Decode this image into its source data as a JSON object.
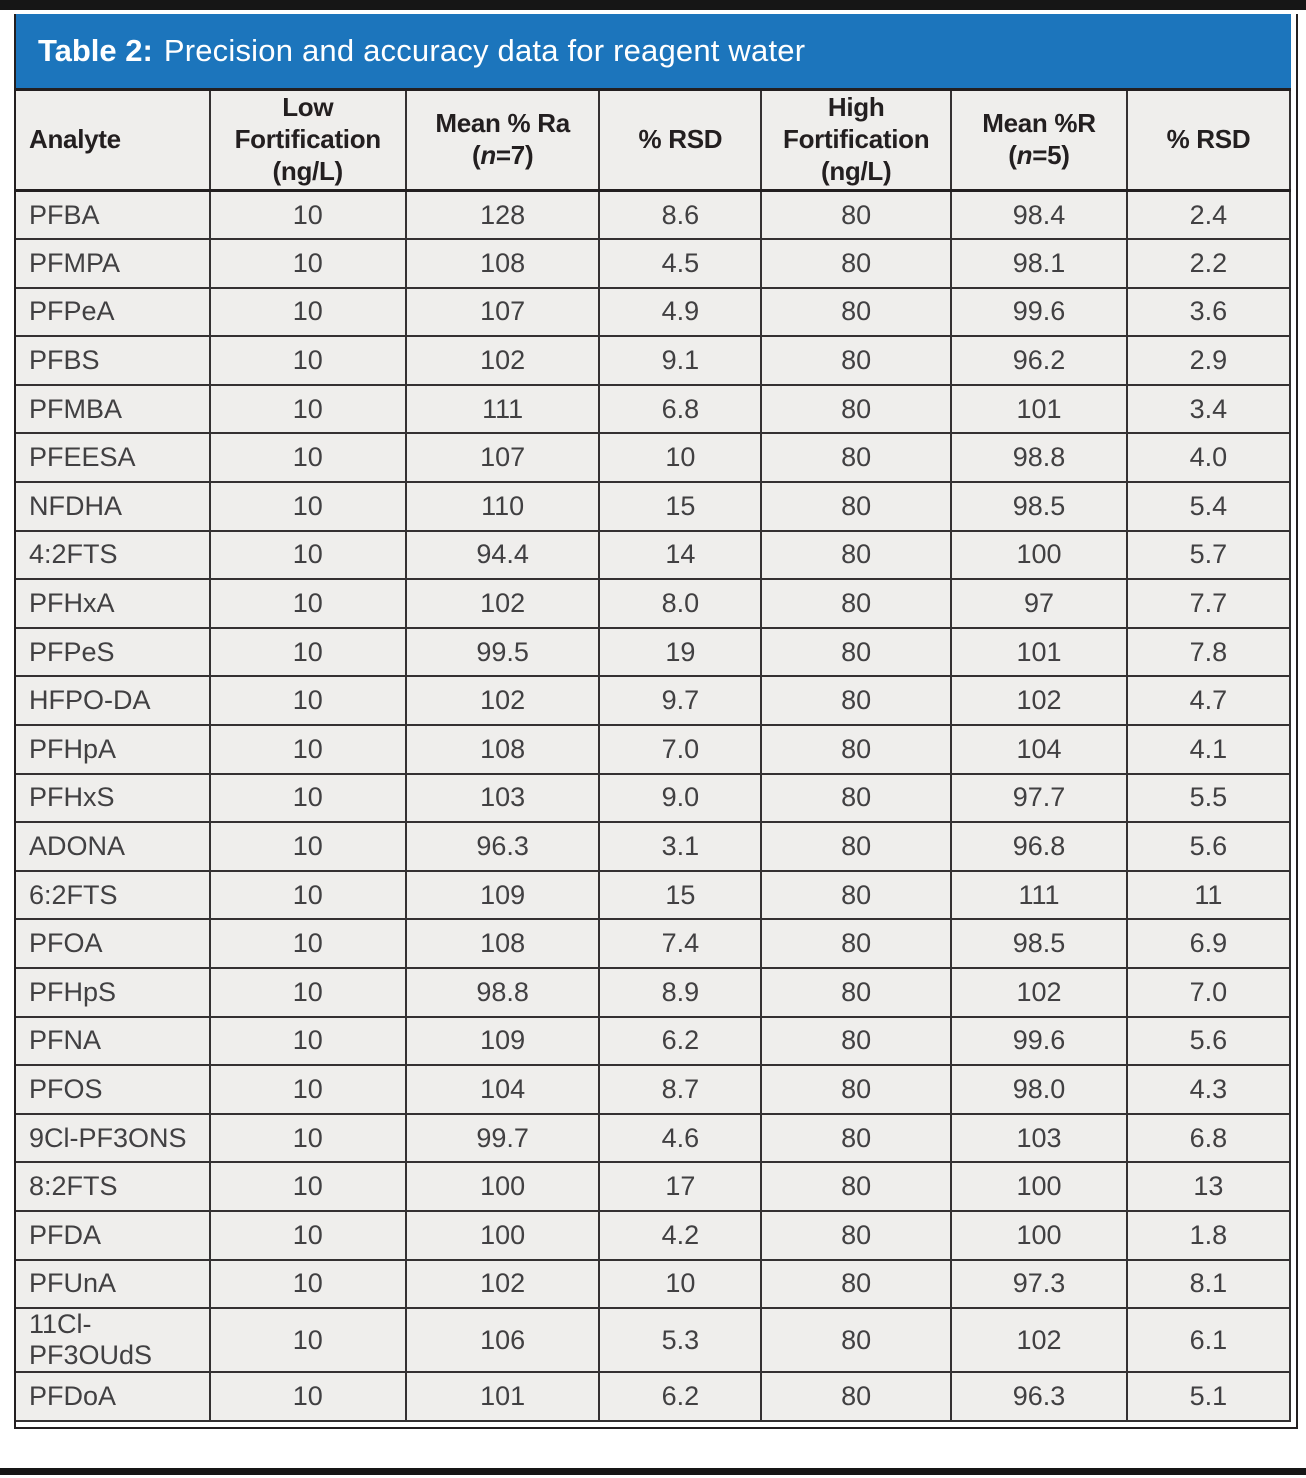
{
  "title": {
    "prefix": "Table 2:",
    "text": "Precision and accuracy data for reagent water"
  },
  "table": {
    "columns": [
      {
        "id": "analyte",
        "lines": [
          "Analyte"
        ]
      },
      {
        "id": "low-fortification",
        "lines": [
          "Low",
          "Fortification",
          "(ng/L)"
        ]
      },
      {
        "id": "mean-pct-ra-n7",
        "lines": [
          "Mean % Ra",
          "(n=7)"
        ]
      },
      {
        "id": "pct-rsd-low",
        "lines": [
          "% RSD"
        ]
      },
      {
        "id": "high-fortification",
        "lines": [
          "High",
          "Fortification",
          "(ng/L)"
        ]
      },
      {
        "id": "mean-pct-r-n5",
        "lines": [
          "Mean %R",
          "(n=5)"
        ]
      },
      {
        "id": "pct-rsd-high",
        "lines": [
          "% RSD"
        ]
      }
    ],
    "rows": [
      [
        "PFBA",
        "10",
        "128",
        "8.6",
        "80",
        "98.4",
        "2.4"
      ],
      [
        "PFMPA",
        "10",
        "108",
        "4.5",
        "80",
        "98.1",
        "2.2"
      ],
      [
        "PFPeA",
        "10",
        "107",
        "4.9",
        "80",
        "99.6",
        "3.6"
      ],
      [
        "PFBS",
        "10",
        "102",
        "9.1",
        "80",
        "96.2",
        "2.9"
      ],
      [
        "PFMBA",
        "10",
        "111",
        "6.8",
        "80",
        "101",
        "3.4"
      ],
      [
        "PFEESA",
        "10",
        "107",
        "10",
        "80",
        "98.8",
        "4.0"
      ],
      [
        "NFDHA",
        "10",
        "110",
        "15",
        "80",
        "98.5",
        "5.4"
      ],
      [
        "4:2FTS",
        "10",
        "94.4",
        "14",
        "80",
        "100",
        "5.7"
      ],
      [
        "PFHxA",
        "10",
        "102",
        "8.0",
        "80",
        "97",
        "7.7"
      ],
      [
        "PFPeS",
        "10",
        "99.5",
        "19",
        "80",
        "101",
        "7.8"
      ],
      [
        "HFPO-DA",
        "10",
        "102",
        "9.7",
        "80",
        "102",
        "4.7"
      ],
      [
        "PFHpA",
        "10",
        "108",
        "7.0",
        "80",
        "104",
        "4.1"
      ],
      [
        "PFHxS",
        "10",
        "103",
        "9.0",
        "80",
        "97.7",
        "5.5"
      ],
      [
        "ADONA",
        "10",
        "96.3",
        "3.1",
        "80",
        "96.8",
        "5.6"
      ],
      [
        "6:2FTS",
        "10",
        "109",
        "15",
        "80",
        "111",
        "11"
      ],
      [
        "PFOA",
        "10",
        "108",
        "7.4",
        "80",
        "98.5",
        "6.9"
      ],
      [
        "PFHpS",
        "10",
        "98.8",
        "8.9",
        "80",
        "102",
        "7.0"
      ],
      [
        "PFNA",
        "10",
        "109",
        "6.2",
        "80",
        "99.6",
        "5.6"
      ],
      [
        "PFOS",
        "10",
        "104",
        "8.7",
        "80",
        "98.0",
        "4.3"
      ],
      [
        "9Cl-PF3ONS",
        "10",
        "99.7",
        "4.6",
        "80",
        "103",
        "6.8"
      ],
      [
        "8:2FTS",
        "10",
        "100",
        "17",
        "80",
        "100",
        "13"
      ],
      [
        "PFDA",
        "10",
        "100",
        "4.2",
        "80",
        "100",
        "1.8"
      ],
      [
        "PFUnA",
        "10",
        "102",
        "10",
        "80",
        "97.3",
        "8.1"
      ],
      [
        "11Cl-PF3OUdS",
        "10",
        "106",
        "5.3",
        "80",
        "102",
        "6.1"
      ],
      [
        "PFDoA",
        "10",
        "101",
        "6.2",
        "80",
        "96.3",
        "5.1"
      ]
    ]
  },
  "colors": {
    "header_bar": "#1c75bc",
    "cell_bg": "#efeeec",
    "grid": "#343132",
    "heavy_rule": "#231f20",
    "text": "#414042",
    "header_text": "#231f20",
    "title_text": "#ffffff",
    "page_rule": "#161616"
  }
}
